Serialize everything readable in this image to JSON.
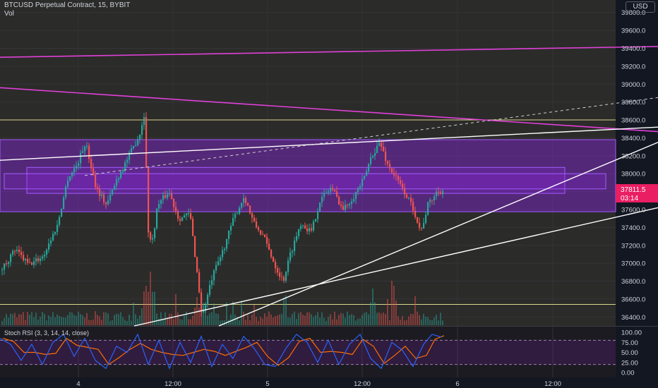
{
  "header": {
    "symbol_title": "BTCUSD Perpetual Contract, 15, BYBIT",
    "volume_label": "Vol",
    "currency_button": "USD"
  },
  "colors": {
    "background": "#131722",
    "panel": "#2b2b29",
    "up": "#26a69a",
    "down": "#ef5350",
    "zone_fill": "#8c24e6",
    "zone_border": "#a35cff",
    "magenta_line": "#e040d8",
    "white_line": "#ffffff",
    "hline": "#d9d68c",
    "price_tag": "#e91e63",
    "rsi_k": "#2962ff",
    "rsi_d": "#ff6d00"
  },
  "chart_data": {
    "type": "candlestick",
    "symbol": "BTCUSD Perpetual Contract",
    "interval": "15",
    "exchange": "BYBIT",
    "currency": "USD",
    "ylim": [
      36300,
      39900
    ],
    "y_ticks": [
      "39800.0",
      "39600.0",
      "39400.0",
      "39200.0",
      "39000.0",
      "38800.0",
      "38600.0",
      "38400.0",
      "38200.0",
      "38000.0",
      "37800.0",
      "37600.0",
      "37400.0",
      "37200.0",
      "37000.0",
      "36800.0",
      "36600.0",
      "36400.0"
    ],
    "x_ticks": [
      "4",
      "12:00",
      "5",
      "12:00",
      "6",
      "12:00"
    ],
    "last_price": "37811.5",
    "countdown": "03:14",
    "close_path": [
      [
        0,
        36920
      ],
      [
        20,
        37150
      ],
      [
        40,
        36980
      ],
      [
        60,
        37080
      ],
      [
        80,
        37420
      ],
      [
        95,
        37950
      ],
      [
        108,
        38100
      ],
      [
        120,
        38350
      ],
      [
        135,
        37850
      ],
      [
        150,
        37650
      ],
      [
        165,
        37950
      ],
      [
        185,
        38250
      ],
      [
        197,
        38450
      ],
      [
        204,
        38700
      ],
      [
        208,
        37400
      ],
      [
        214,
        37200
      ],
      [
        222,
        37650
      ],
      [
        238,
        37800
      ],
      [
        252,
        37500
      ],
      [
        268,
        37550
      ],
      [
        278,
        36900
      ],
      [
        285,
        36400
      ],
      [
        300,
        36850
      ],
      [
        315,
        37150
      ],
      [
        330,
        37500
      ],
      [
        345,
        37750
      ],
      [
        358,
        37450
      ],
      [
        372,
        37300
      ],
      [
        390,
        36950
      ],
      [
        400,
        36800
      ],
      [
        410,
        37100
      ],
      [
        425,
        37450
      ],
      [
        440,
        37350
      ],
      [
        452,
        37700
      ],
      [
        468,
        37850
      ],
      [
        485,
        37600
      ],
      [
        500,
        37750
      ],
      [
        515,
        37950
      ],
      [
        525,
        38200
      ],
      [
        537,
        38350
      ],
      [
        548,
        38100
      ],
      [
        560,
        37950
      ],
      [
        575,
        37750
      ],
      [
        585,
        37600
      ],
      [
        595,
        37350
      ],
      [
        605,
        37650
      ],
      [
        618,
        37800
      ],
      [
        628,
        37811
      ]
    ],
    "vol_peaks": [
      [
        205,
        0.8
      ],
      [
        212,
        0.95
      ],
      [
        278,
        0.5
      ],
      [
        288,
        0.45
      ],
      [
        527,
        0.65
      ],
      [
        557,
        0.7
      ]
    ],
    "horizontal_lines": [
      38600,
      36540
    ],
    "zones": [
      {
        "name": "outer-zone",
        "top": 38380,
        "bottom": 37575
      },
      {
        "name": "inner-zone-1",
        "top": 38070,
        "bottom": 37780,
        "x_from": 38,
        "x_to": 800
      },
      {
        "name": "inner-zone-2",
        "top": 38000,
        "bottom": 37830,
        "x_from": 6,
        "x_to": 858
      }
    ],
    "trend_lines": [
      {
        "name": "magenta-upper-trendline",
        "kind": "magenta",
        "from": [
          0,
          39300
        ],
        "to": [
          932,
          39420
        ]
      },
      {
        "name": "magenta-falling-trendline",
        "kind": "magenta",
        "from": [
          0,
          38960
        ],
        "to": [
          932,
          38470
        ]
      },
      {
        "name": "white-upper-trendline",
        "kind": "white",
        "from": [
          0,
          38150
        ],
        "to": [
          932,
          38520
        ]
      },
      {
        "name": "white-dashed-trendline",
        "kind": "dashed",
        "from": [
          120,
          37980
        ],
        "to": [
          932,
          38850
        ]
      },
      {
        "name": "white-steep-trendline",
        "kind": "white",
        "from": [
          310,
          36300
        ],
        "to": [
          932,
          38350
        ]
      },
      {
        "name": "white-lower-trendline",
        "kind": "white",
        "from": [
          190,
          36300
        ],
        "to": [
          932,
          37620
        ]
      }
    ],
    "stoch_rsi": {
      "label": "Stoch RSI (3, 3, 14, 14, close)",
      "ylim": [
        0,
        100
      ],
      "ticks": [
        "100.00",
        "75.00",
        "50.00",
        "25.00",
        "0.00"
      ],
      "bands": [
        80,
        20
      ],
      "k_series": [
        [
          0,
          85
        ],
        [
          15,
          70
        ],
        [
          30,
          30
        ],
        [
          45,
          70
        ],
        [
          60,
          20
        ],
        [
          75,
          75
        ],
        [
          90,
          95
        ],
        [
          105,
          40
        ],
        [
          120,
          85
        ],
        [
          135,
          30
        ],
        [
          150,
          10
        ],
        [
          165,
          65
        ],
        [
          180,
          50
        ],
        [
          195,
          95
        ],
        [
          210,
          20
        ],
        [
          225,
          80
        ],
        [
          240,
          10
        ],
        [
          255,
          75
        ],
        [
          270,
          25
        ],
        [
          285,
          90
        ],
        [
          300,
          15
        ],
        [
          315,
          70
        ],
        [
          330,
          35
        ],
        [
          345,
          90
        ],
        [
          360,
          60
        ],
        [
          375,
          20
        ],
        [
          390,
          15
        ],
        [
          405,
          60
        ],
        [
          420,
          95
        ],
        [
          435,
          75
        ],
        [
          450,
          25
        ],
        [
          465,
          80
        ],
        [
          480,
          20
        ],
        [
          495,
          70
        ],
        [
          510,
          95
        ],
        [
          525,
          35
        ],
        [
          540,
          10
        ],
        [
          555,
          75
        ],
        [
          570,
          55
        ],
        [
          585,
          15
        ],
        [
          600,
          70
        ],
        [
          612,
          95
        ],
        [
          625,
          88
        ]
      ]
    }
  }
}
